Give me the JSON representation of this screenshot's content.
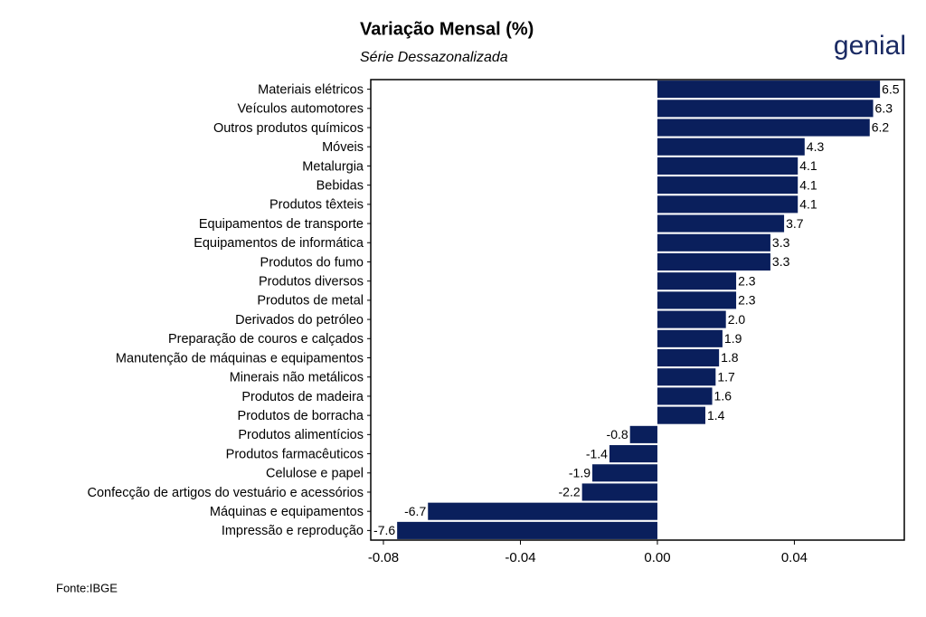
{
  "brand": "genial",
  "chart_data": {
    "type": "bar",
    "orientation": "horizontal",
    "title": "Variação Mensal (%)",
    "subtitle": "Série Dessazonalizada",
    "caption": "Fonte:IBGE",
    "categories": [
      "Materiais elétricos",
      "Veículos automotores",
      "Outros produtos químicos",
      "Móveis",
      "Metalurgia",
      "Bebidas",
      "Produtos têxteis",
      "Equipamentos de transporte",
      "Equipamentos de informática",
      "Produtos do fumo",
      "Produtos diversos",
      "Produtos de metal",
      "Derivados do petróleo",
      "Preparação de couros e calçados",
      "Manutenção de máquinas e equipamentos",
      "Minerais não metálicos",
      "Produtos de madeira",
      "Produtos de borracha",
      "Produtos alimentícios",
      "Produtos farmacêuticos",
      "Celulose e papel",
      "Confecção de artigos do vestuário e acessórios",
      "Máquinas e equipamentos",
      "Impressão e reprodução"
    ],
    "values": [
      0.065,
      0.063,
      0.062,
      0.043,
      0.041,
      0.041,
      0.041,
      0.037,
      0.033,
      0.033,
      0.023,
      0.023,
      0.02,
      0.019,
      0.018,
      0.017,
      0.016,
      0.014,
      -0.008,
      -0.014,
      -0.019,
      -0.022,
      -0.067,
      -0.076
    ],
    "value_labels": [
      "6.5",
      "6.3",
      "6.2",
      "4.3",
      "4.1",
      "4.1",
      "4.1",
      "3.7",
      "3.3",
      "3.3",
      "2.3",
      "2.3",
      "2.0",
      "1.9",
      "1.8",
      "1.7",
      "1.6",
      "1.4",
      "-0.8",
      "-1.4",
      "-1.9",
      "-2.2",
      "-6.7",
      "-7.6"
    ],
    "color": "#0a1f5c",
    "xlim": [
      -0.0837,
      0.0721
    ],
    "xticks": [
      -0.08,
      -0.04,
      {
        "value": 0,
        "label": "0.00"
      },
      0.04
    ]
  }
}
